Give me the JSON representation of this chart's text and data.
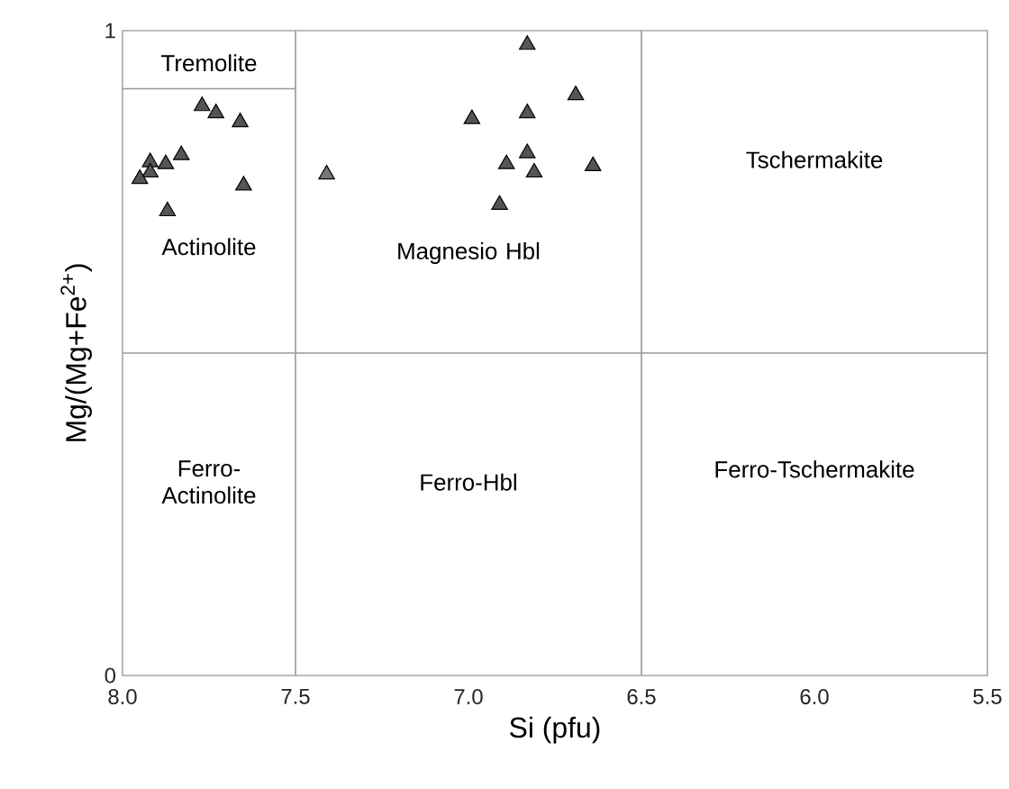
{
  "chart_data": {
    "type": "scatter",
    "xlabel": "Si (pfu)",
    "ylabel": "Mg/(Mg+Fe$^{2+}$)",
    "xlim": [
      8.0,
      5.5
    ],
    "xticks": [
      {
        "value": 8.0,
        "label": "8.0"
      },
      {
        "value": 7.5,
        "label": "7.5"
      },
      {
        "value": 7.0,
        "label": "7.0"
      },
      {
        "value": 6.5,
        "label": "6.5"
      },
      {
        "value": 6.0,
        "label": "6.0"
      },
      {
        "value": 5.5,
        "label": "5.5"
      }
    ],
    "ylim": [
      0,
      1
    ],
    "yticks": [
      0,
      1
    ],
    "series": [
      {
        "marker": "triangle",
        "x": [
          7.77,
          7.73,
          7.66,
          7.83,
          7.875,
          7.92,
          7.92,
          7.95,
          7.65,
          7.87,
          7.41,
          6.83,
          6.69,
          6.99,
          6.83,
          6.83,
          6.89,
          6.81,
          6.64,
          6.91
        ],
        "values": [
          0.883,
          0.872,
          0.858,
          0.807,
          0.793,
          0.796,
          0.78,
          0.77,
          0.76,
          0.72,
          0.777,
          0.978,
          0.9,
          0.863,
          0.872,
          0.81,
          0.793,
          0.78,
          0.79,
          0.73
        ],
        "colors": [
          "#555555",
          "#555555",
          "#555555",
          "#555555",
          "#555555",
          "#555555",
          "#555555",
          "#555555",
          "#555555",
          "#555555",
          "#777777",
          "#555555",
          "#555555",
          "#555555",
          "#555555",
          "#555555",
          "#555555",
          "#555555",
          "#555555",
          "#555555"
        ]
      },
      {
        "type": "line",
        "x": [
          8.0,
          7.5
        ],
        "values": [
          0.91,
          0.91
        ],
        "color": "#999999"
      }
    ],
    "ref_lines": [
      {
        "axis": "x",
        "value": 7.5,
        "color": "#999999"
      },
      {
        "axis": "x",
        "value": 6.5,
        "color": "#999999"
      },
      {
        "axis": "y",
        "value": 0.5,
        "color": "#999999"
      }
    ],
    "annotations": [
      "Tremolite",
      "Actinolite",
      "Magnesio Hbl",
      "Tschermakite",
      "Ferro-Actinolite",
      "Ferro-Hbl",
      "Ferro-Tschermakite"
    ]
  }
}
